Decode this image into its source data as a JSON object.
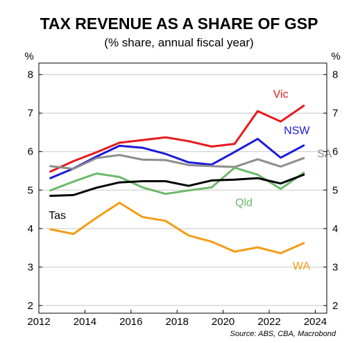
{
  "chart_data": {
    "type": "line",
    "title": "TAX REVENUE AS A SHARE OF GSP",
    "subtitle": "(% share, annual fiscal year)",
    "y_unit_left": "%",
    "y_unit_right": "%",
    "source": "Source: ABS, CBA, Macrobond",
    "xlim": [
      2012,
      2024.5
    ],
    "ylim": [
      1.8,
      8.3
    ],
    "x_ticks": [
      2012,
      2014,
      2016,
      2018,
      2020,
      2022,
      2024
    ],
    "x_tick_labels": [
      "2012",
      "2014",
      "2016",
      "2018",
      "2020",
      "2022",
      "2024"
    ],
    "y_ticks": [
      2,
      3,
      4,
      5,
      6,
      7,
      8
    ],
    "y_tick_labels": [
      "2",
      "3",
      "4",
      "5",
      "6",
      "7",
      "8"
    ],
    "grid": "horizontal",
    "x": [
      2012.5,
      2013.5,
      2014.5,
      2015.5,
      2016.5,
      2017.5,
      2018.5,
      2019.5,
      2020.5,
      2021.5,
      2022.5,
      2023.5
    ],
    "series": [
      {
        "name": "Vic",
        "color": "#e8191c",
        "values": [
          5.48,
          5.75,
          5.98,
          6.23,
          6.3,
          6.37,
          6.27,
          6.13,
          6.2,
          7.05,
          6.78,
          7.19
        ]
      },
      {
        "name": "NSW",
        "color": "#1a1adb",
        "values": [
          5.31,
          5.56,
          5.87,
          6.15,
          6.1,
          5.94,
          5.72,
          5.66,
          5.99,
          6.33,
          5.84,
          6.16
        ]
      },
      {
        "name": "SA",
        "color": "#8c8c8c",
        "values": [
          5.62,
          5.55,
          5.83,
          5.91,
          5.79,
          5.78,
          5.65,
          5.62,
          5.6,
          5.8,
          5.61,
          5.83
        ]
      },
      {
        "name": "Qld",
        "color": "#6cb86a",
        "values": [
          4.99,
          5.22,
          5.43,
          5.34,
          5.07,
          4.9,
          4.99,
          5.07,
          5.58,
          5.4,
          5.03,
          5.45
        ]
      },
      {
        "name": "Tas",
        "color": "#000000",
        "values": [
          4.85,
          4.87,
          5.06,
          5.2,
          5.23,
          5.23,
          5.11,
          5.25,
          5.27,
          5.31,
          5.17,
          5.4
        ]
      },
      {
        "name": "WA",
        "color": "#f39c12",
        "values": [
          3.98,
          3.86,
          4.28,
          4.67,
          4.3,
          4.2,
          3.82,
          3.66,
          3.4,
          3.51,
          3.36,
          3.62
        ]
      }
    ],
    "labels": [
      {
        "text": "Vic",
        "x": 2022.5,
        "y": 7.4,
        "color": "#e8191c"
      },
      {
        "text": "NSW",
        "x": 2023.2,
        "y": 6.45,
        "color": "#1a1adb"
      },
      {
        "text": "SA",
        "x": 2024.4,
        "y": 5.85,
        "color": "#8c8c8c"
      },
      {
        "text": "Qld",
        "x": 2020.9,
        "y": 4.58,
        "color": "#6cb86a"
      },
      {
        "text": "Tas",
        "x": 2012.8,
        "y": 4.25,
        "color": "#000000"
      },
      {
        "text": "WA",
        "x": 2023.4,
        "y": 2.93,
        "color": "#f39c12"
      }
    ]
  }
}
